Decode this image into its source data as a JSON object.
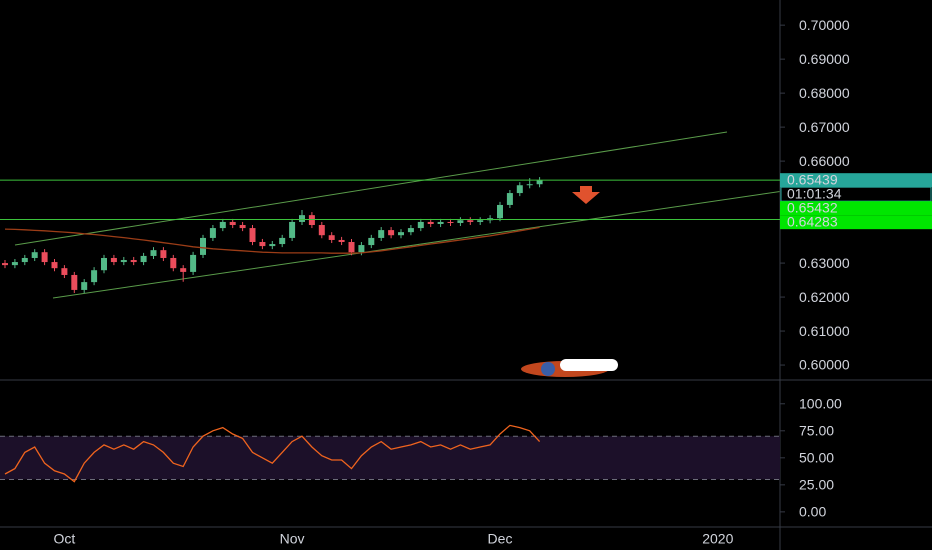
{
  "chart_data": [
    {
      "type": "candlestick",
      "categories": [
        null,
        null,
        null,
        null,
        null,
        null,
        "Oct",
        null,
        null,
        null,
        null,
        null,
        null,
        null,
        null,
        null,
        null,
        null,
        null,
        null,
        null,
        null,
        null,
        null,
        null,
        null,
        null,
        null,
        null,
        "Nov",
        null,
        null,
        null,
        null,
        null,
        null,
        null,
        null,
        null,
        null,
        null,
        null,
        null,
        null,
        null,
        null,
        null,
        null,
        null,
        null,
        "Dec",
        null,
        null,
        null,
        null,
        null,
        null,
        null,
        null,
        null,
        null,
        null,
        null,
        null,
        null,
        null,
        null,
        null,
        null,
        null,
        null,
        null,
        "2020"
      ],
      "open": [
        0.63,
        0.6294,
        0.6303,
        0.6315,
        0.6332,
        0.6303,
        0.6285,
        0.6265,
        0.6221,
        0.6244,
        0.6279,
        0.6315,
        0.6303,
        0.6309,
        0.6303,
        0.6321,
        0.6338,
        0.6315,
        0.6285,
        0.6274,
        0.6324,
        0.6374,
        0.6403,
        0.6421,
        0.6412,
        0.6403,
        0.6362,
        0.635,
        0.6356,
        0.6374,
        0.6421,
        0.6441,
        0.6412,
        0.6382,
        0.6368,
        0.6362,
        0.6332,
        0.6353,
        0.6374,
        0.6397,
        0.6382,
        0.6391,
        0.6403,
        0.6421,
        0.6415,
        0.6421,
        0.6418,
        0.6426,
        0.6421,
        0.6426,
        0.6432,
        0.6471,
        0.6506,
        0.6529,
        0.6532,
        null,
        null,
        null,
        null,
        null,
        null,
        null,
        null,
        null,
        null,
        null,
        null,
        null,
        null,
        null,
        null,
        null,
        null
      ],
      "high": [
        0.6309,
        0.6312,
        0.6324,
        0.6341,
        0.6341,
        0.6312,
        0.6294,
        0.6274,
        0.6253,
        0.6288,
        0.6324,
        0.6324,
        0.6318,
        0.6318,
        0.633,
        0.6347,
        0.6347,
        0.6324,
        0.6294,
        0.6333,
        0.6383,
        0.6412,
        0.643,
        0.643,
        0.6421,
        0.6412,
        0.6371,
        0.6365,
        0.6383,
        0.643,
        0.6456,
        0.645,
        0.6421,
        0.6391,
        0.6377,
        0.6371,
        0.6362,
        0.6383,
        0.6406,
        0.6406,
        0.64,
        0.6412,
        0.643,
        0.643,
        0.643,
        0.643,
        0.6435,
        0.6435,
        0.6435,
        0.6441,
        0.648,
        0.6515,
        0.6538,
        0.655,
        0.6553,
        null,
        null,
        null,
        null,
        null,
        null,
        null,
        null,
        null,
        null,
        null,
        null,
        null,
        null,
        null,
        null,
        null,
        null
      ],
      "low": [
        0.6285,
        0.6285,
        0.6294,
        0.6306,
        0.6294,
        0.6276,
        0.6256,
        0.6212,
        0.6212,
        0.6235,
        0.627,
        0.6294,
        0.6294,
        0.6294,
        0.6294,
        0.6312,
        0.6306,
        0.6276,
        0.6245,
        0.6265,
        0.6315,
        0.6365,
        0.6394,
        0.6403,
        0.6394,
        0.6353,
        0.6341,
        0.6341,
        0.6347,
        0.6365,
        0.6412,
        0.6403,
        0.6373,
        0.6359,
        0.6353,
        0.6323,
        0.6323,
        0.6344,
        0.6365,
        0.6373,
        0.6373,
        0.6382,
        0.6394,
        0.6406,
        0.6406,
        0.6409,
        0.6409,
        0.6412,
        0.6412,
        0.6417,
        0.6423,
        0.6462,
        0.6497,
        0.652,
        0.6523,
        null,
        null,
        null,
        null,
        null,
        null,
        null,
        null,
        null,
        null,
        null,
        null,
        null,
        null,
        null,
        null,
        null,
        null
      ],
      "close": [
        0.6294,
        0.6303,
        0.6315,
        0.6332,
        0.6303,
        0.6285,
        0.6265,
        0.6221,
        0.6244,
        0.6279,
        0.6315,
        0.6303,
        0.6309,
        0.6303,
        0.6321,
        0.6338,
        0.6315,
        0.6285,
        0.6274,
        0.6324,
        0.6374,
        0.6403,
        0.6421,
        0.6412,
        0.6403,
        0.6362,
        0.635,
        0.6356,
        0.6374,
        0.6421,
        0.6441,
        0.6412,
        0.6382,
        0.6368,
        0.6362,
        0.6332,
        0.6353,
        0.6374,
        0.6397,
        0.6382,
        0.6391,
        0.6403,
        0.6421,
        0.6415,
        0.6421,
        0.6418,
        0.6426,
        0.6421,
        0.6426,
        0.6432,
        0.6471,
        0.6506,
        0.6529,
        0.6532,
        0.6544,
        null,
        null,
        null,
        null,
        null,
        null,
        null,
        null,
        null,
        null,
        null,
        null,
        null,
        null,
        null,
        null,
        null,
        null
      ],
      "up_color": "#53b987",
      "down_color": "#eb4d5c",
      "series": [
        {
          "color": "#9c3d17",
          "values": [
            0.64,
            0.6399,
            0.6398,
            0.6396,
            0.6395,
            0.6393,
            0.6391,
            0.6389,
            0.6386,
            0.6384,
            0.6381,
            0.6378,
            0.6375,
            0.6371,
            0.6368,
            0.6364,
            0.636,
            0.6356,
            0.6352,
            0.6348,
            0.6345,
            0.6342,
            0.634,
            0.6338,
            0.6336,
            0.6334,
            0.6332,
            0.6331,
            0.633,
            0.633,
            0.633,
            0.633,
            0.633,
            0.6329,
            0.6329,
            0.6329,
            0.633,
            0.6333,
            0.6336,
            0.634,
            0.6344,
            0.6348,
            0.6352,
            0.6356,
            0.636,
            0.6364,
            0.6368,
            0.6372,
            0.6376,
            0.638,
            0.6385,
            0.639,
            0.6395,
            0.64,
            0.6405,
            null,
            null,
            null,
            null,
            null,
            null,
            null,
            null,
            null,
            null,
            null,
            null,
            null,
            null,
            null,
            null,
            null,
            null
          ]
        }
      ],
      "ylim": [
        0.5956,
        0.7074
      ],
      "yticks": [
        {
          "value": 0.7,
          "label": "0.70000"
        },
        {
          "value": 0.69,
          "label": "0.69000"
        },
        {
          "value": 0.68,
          "label": "0.68000"
        },
        {
          "value": 0.67,
          "label": "0.67000"
        },
        {
          "value": 0.66,
          "label": "0.66000"
        },
        {
          "value": 0.63,
          "label": "0.63000"
        },
        {
          "value": 0.62,
          "label": "0.62000"
        },
        {
          "value": 0.61,
          "label": "0.61000"
        },
        {
          "value": 0.6,
          "label": "0.60000"
        }
      ],
      "grid": false,
      "last_price": {
        "value": 0.65439,
        "label": "0.65439",
        "countdown": "01:01:34",
        "color": "#26a69a"
      },
      "hlines": [
        {
          "value": 0.65432,
          "label": "0.65432",
          "color": "#00e600"
        },
        {
          "value": 0.64283,
          "label": "0.64283",
          "color": "#00e600"
        }
      ]
    },
    {
      "type": "line",
      "series": [
        {
          "color": "#f0641e",
          "values": [
            35,
            40,
            55,
            60,
            45,
            38,
            35,
            28,
            45,
            55,
            62,
            58,
            62,
            58,
            65,
            62,
            55,
            45,
            42,
            60,
            70,
            75,
            78,
            72,
            68,
            55,
            50,
            45,
            55,
            65,
            70,
            60,
            52,
            48,
            48,
            40,
            52,
            60,
            65,
            58,
            60,
            62,
            65,
            60,
            62,
            58,
            62,
            58,
            60,
            62,
            72,
            80,
            78,
            75,
            65,
            null,
            null,
            null,
            null,
            null,
            null,
            null,
            null,
            null,
            null,
            null,
            null,
            null,
            null,
            null,
            null,
            null,
            null
          ]
        }
      ],
      "ylim": [
        -14,
        122
      ],
      "yticks": [
        {
          "value": 100,
          "label": "100.00"
        },
        {
          "value": 75,
          "label": "75.00"
        },
        {
          "value": 50,
          "label": "50.00"
        },
        {
          "value": 25,
          "label": "25.00"
        },
        {
          "value": 0,
          "label": "0.00"
        }
      ],
      "band": [
        30,
        70
      ],
      "band_color": "#1c1029",
      "grid": false
    }
  ]
}
